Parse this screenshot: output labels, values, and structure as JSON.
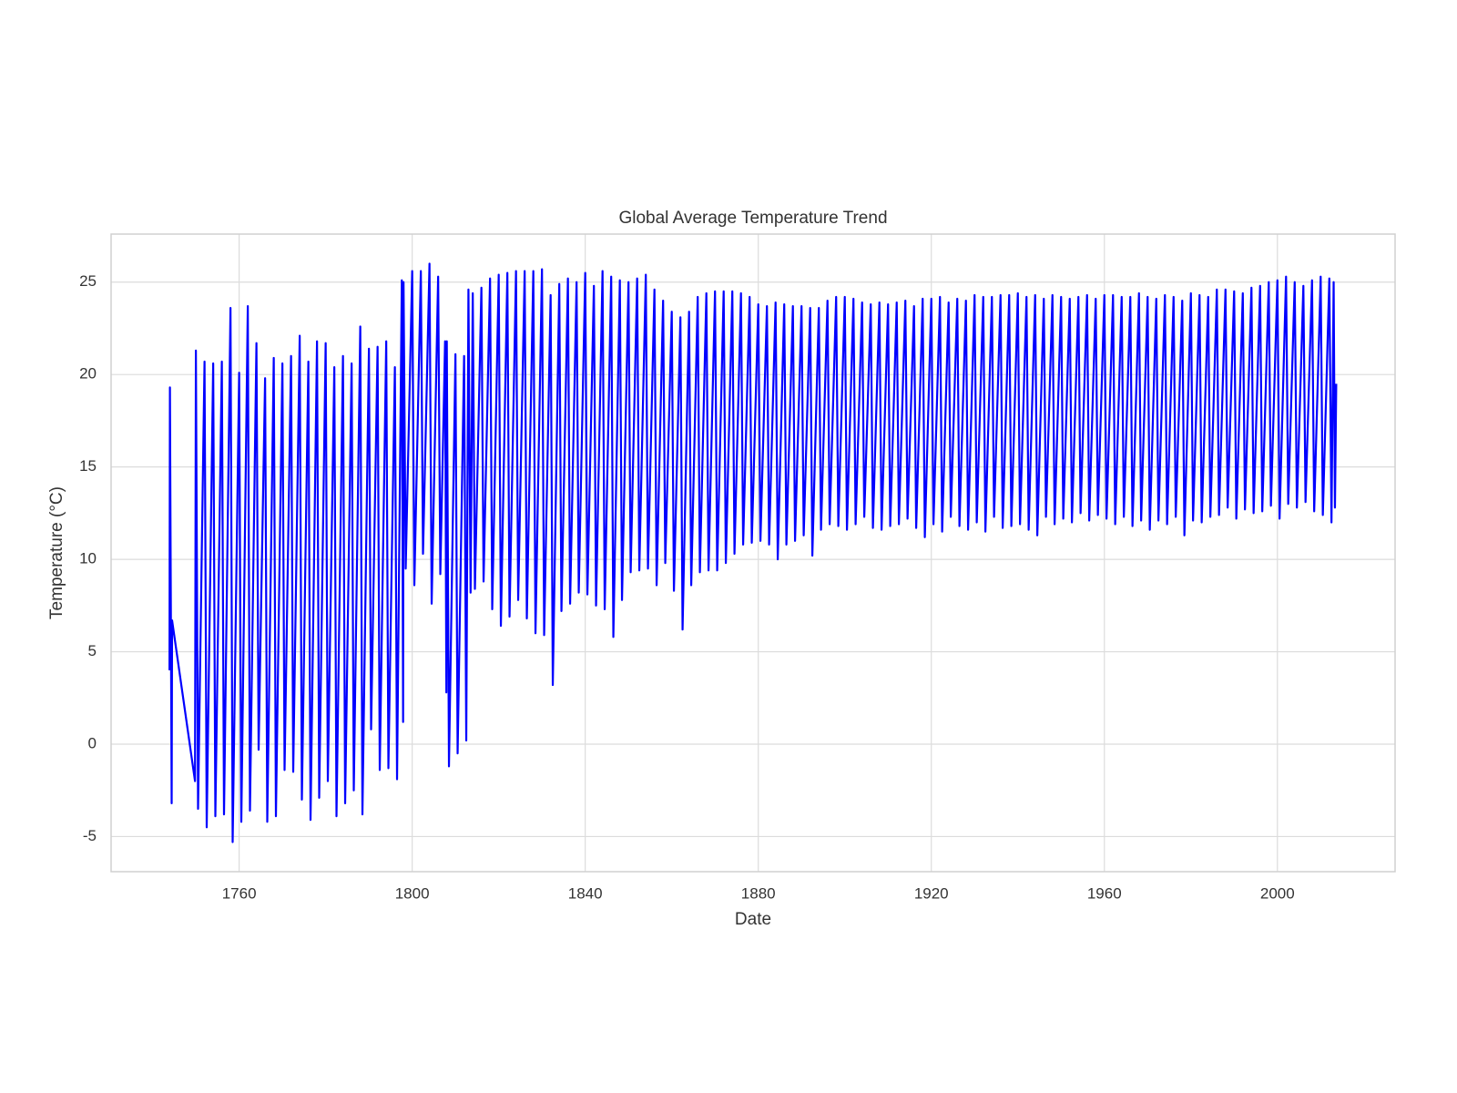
{
  "chart_data": {
    "type": "line",
    "title": "Global Average Temperature Trend",
    "xlabel": "Date",
    "ylabel": "Temperature (°C)",
    "color": "#0000ff",
    "grid": true,
    "xlim": [
      1730.4,
      2027.2
    ],
    "ylim": [
      -6.9,
      27.6
    ],
    "xticks": [
      1760,
      1800,
      1840,
      1880,
      1920,
      1960,
      2000
    ],
    "yticks": [
      -5,
      0,
      5,
      10,
      15,
      20,
      25
    ],
    "x": [
      1743.9,
      1744.0,
      1744.4,
      1744.5,
      1749.8,
      1750,
      1750.5,
      1752,
      1752.5,
      1754,
      1754.5,
      1756,
      1756.5,
      1758,
      1758.5,
      1760,
      1760.5,
      1762,
      1762.5,
      1764,
      1764.5,
      1766,
      1766.5,
      1768,
      1768.5,
      1770,
      1770.5,
      1772,
      1772.5,
      1774,
      1774.5,
      1776,
      1776.5,
      1778,
      1778.5,
      1780,
      1780.5,
      1782,
      1782.5,
      1784,
      1784.5,
      1786,
      1786.5,
      1788,
      1788.5,
      1790,
      1790.5,
      1792,
      1792.5,
      1794,
      1794.5,
      1796,
      1796.5,
      1797.6,
      1797.9,
      1798,
      1798.5,
      1800,
      1800.5,
      1802,
      1802.5,
      1804,
      1804.5,
      1806,
      1806.5,
      1807.6,
      1807.9,
      1808,
      1808.5,
      1810,
      1810.5,
      1812,
      1812.5,
      1813,
      1813.5,
      1814,
      1814.5,
      1816,
      1816.5,
      1818,
      1818.5,
      1820,
      1820.5,
      1822,
      1822.5,
      1824,
      1824.5,
      1826,
      1826.5,
      1828,
      1828.5,
      1830,
      1830.5,
      1832,
      1832.5,
      1834,
      1834.5,
      1836,
      1836.5,
      1838,
      1838.5,
      1840,
      1840.5,
      1842,
      1842.5,
      1844,
      1844.5,
      1846,
      1846.5,
      1848,
      1848.5,
      1850,
      1850.5,
      1852,
      1852.5,
      1854,
      1854.5,
      1856,
      1856.5,
      1858,
      1858.5,
      1860,
      1860.5,
      1862,
      1862.5,
      1864,
      1864.5,
      1866,
      1866.5,
      1868,
      1868.5,
      1870,
      1870.5,
      1872,
      1872.5,
      1874,
      1874.5,
      1876,
      1876.5,
      1878,
      1878.5,
      1880,
      1880.5,
      1882,
      1882.5,
      1884,
      1884.5,
      1886,
      1886.5,
      1888,
      1888.5,
      1890,
      1890.5,
      1892,
      1892.5,
      1894,
      1894.5,
      1896,
      1896.5,
      1898,
      1898.5,
      1900,
      1900.5,
      1902,
      1902.5,
      1904,
      1904.5,
      1906,
      1906.5,
      1908,
      1908.5,
      1910,
      1910.5,
      1912,
      1912.5,
      1914,
      1914.5,
      1916,
      1916.5,
      1918,
      1918.5,
      1920,
      1920.5,
      1922,
      1922.5,
      1924,
      1924.5,
      1926,
      1926.5,
      1928,
      1928.5,
      1930,
      1930.5,
      1932,
      1932.5,
      1934,
      1934.5,
      1936,
      1936.5,
      1938,
      1938.5,
      1940,
      1940.5,
      1942,
      1942.5,
      1944,
      1944.5,
      1946,
      1946.5,
      1948,
      1948.5,
      1950,
      1950.5,
      1952,
      1952.5,
      1954,
      1954.5,
      1956,
      1956.5,
      1958,
      1958.5,
      1960,
      1960.5,
      1962,
      1962.5,
      1964,
      1964.5,
      1966,
      1966.5,
      1968,
      1968.5,
      1970,
      1970.5,
      1972,
      1972.5,
      1974,
      1974.5,
      1976,
      1976.5,
      1978,
      1978.5,
      1980,
      1980.5,
      1982,
      1982.5,
      1984,
      1984.5,
      1986,
      1986.5,
      1988,
      1988.5,
      1990,
      1990.5,
      1992,
      1992.5,
      1994,
      1994.5,
      1996,
      1996.5,
      1998,
      1998.5,
      2000,
      2000.5,
      2002,
      2002.5,
      2004,
      2004.5,
      2006,
      2006.5,
      2008,
      2008.5,
      2010,
      2010.5,
      2012,
      2012.5,
      2013,
      2013.3,
      2013.6
    ],
    "values": [
      4,
      19.3,
      -3.2,
      6.7,
      -2,
      21.3,
      -3.5,
      20.7,
      -4.5,
      20.6,
      -3.9,
      20.7,
      -3.8,
      23.6,
      -5.3,
      20.1,
      -4.2,
      23.7,
      -3.6,
      21.7,
      -0.3,
      19.8,
      -4.2,
      20.9,
      -3.9,
      20.6,
      -1.4,
      21.0,
      -1.5,
      22.1,
      -3.0,
      20.7,
      -4.1,
      21.8,
      -2.9,
      21.7,
      -2.0,
      20.4,
      -3.9,
      21.0,
      -3.2,
      20.6,
      -2.5,
      22.6,
      -3.8,
      21.4,
      0.8,
      21.5,
      -1.4,
      21.8,
      -1.3,
      20.4,
      -1.9,
      25.1,
      1.2,
      25.0,
      9.5,
      25.6,
      8.6,
      25.6,
      10.3,
      26.0,
      7.6,
      25.3,
      9.2,
      21.8,
      2.8,
      21.8,
      -1.2,
      21.1,
      -0.5,
      21.0,
      0.2,
      24.6,
      8.2,
      24.4,
      8.4,
      24.7,
      8.8,
      25.2,
      7.3,
      25.4,
      6.4,
      25.5,
      6.9,
      25.6,
      7.8,
      25.6,
      6.8,
      25.6,
      6.0,
      25.7,
      5.9,
      24.3,
      3.2,
      24.9,
      7.2,
      25.2,
      7.6,
      25.0,
      8.2,
      25.5,
      8.1,
      24.8,
      7.5,
      25.6,
      7.3,
      25.3,
      5.8,
      25.1,
      7.8,
      25.0,
      9.3,
      25.2,
      9.4,
      25.4,
      9.5,
      24.6,
      8.6,
      24.0,
      9.8,
      23.4,
      8.3,
      23.1,
      6.2,
      23.4,
      8.6,
      24.2,
      9.3,
      24.4,
      9.4,
      24.5,
      9.4,
      24.5,
      9.8,
      24.5,
      10.3,
      24.4,
      10.8,
      24.2,
      10.9,
      23.8,
      11.0,
      23.7,
      10.8,
      23.9,
      10.0,
      23.8,
      10.8,
      23.7,
      11.0,
      23.7,
      11.3,
      23.6,
      10.2,
      23.6,
      11.6,
      24.0,
      11.9,
      24.2,
      11.8,
      24.2,
      11.6,
      24.1,
      11.9,
      23.9,
      12.3,
      23.8,
      11.7,
      23.9,
      11.6,
      23.8,
      11.8,
      23.9,
      11.9,
      24.0,
      12.2,
      23.7,
      11.7,
      24.1,
      11.2,
      24.1,
      11.9,
      24.2,
      11.5,
      23.9,
      12.3,
      24.1,
      11.8,
      24.0,
      11.6,
      24.3,
      12.0,
      24.2,
      11.5,
      24.2,
      12.3,
      24.3,
      11.7,
      24.3,
      11.8,
      24.4,
      11.9,
      24.2,
      11.6,
      24.3,
      11.3,
      24.1,
      12.3,
      24.3,
      11.9,
      24.2,
      12.2,
      24.1,
      12.0,
      24.2,
      12.5,
      24.3,
      12.1,
      24.1,
      12.4,
      24.3,
      12.2,
      24.3,
      11.9,
      24.2,
      12.3,
      24.2,
      11.8,
      24.4,
      12.1,
      24.2,
      11.6,
      24.1,
      12.1,
      24.3,
      11.9,
      24.2,
      12.3,
      24.0,
      11.3,
      24.4,
      12.1,
      24.3,
      12.0,
      24.2,
      12.3,
      24.6,
      12.4,
      24.6,
      12.8,
      24.5,
      12.2,
      24.4,
      12.7,
      24.7,
      12.5,
      24.8,
      12.6,
      25.0,
      12.9,
      25.1,
      12.2,
      25.3,
      13.0,
      25.0,
      12.8,
      24.8,
      13.1,
      25.1,
      12.6,
      25.3,
      12.4,
      25.2,
      12.0,
      25.0,
      12.8,
      19.5
    ]
  }
}
